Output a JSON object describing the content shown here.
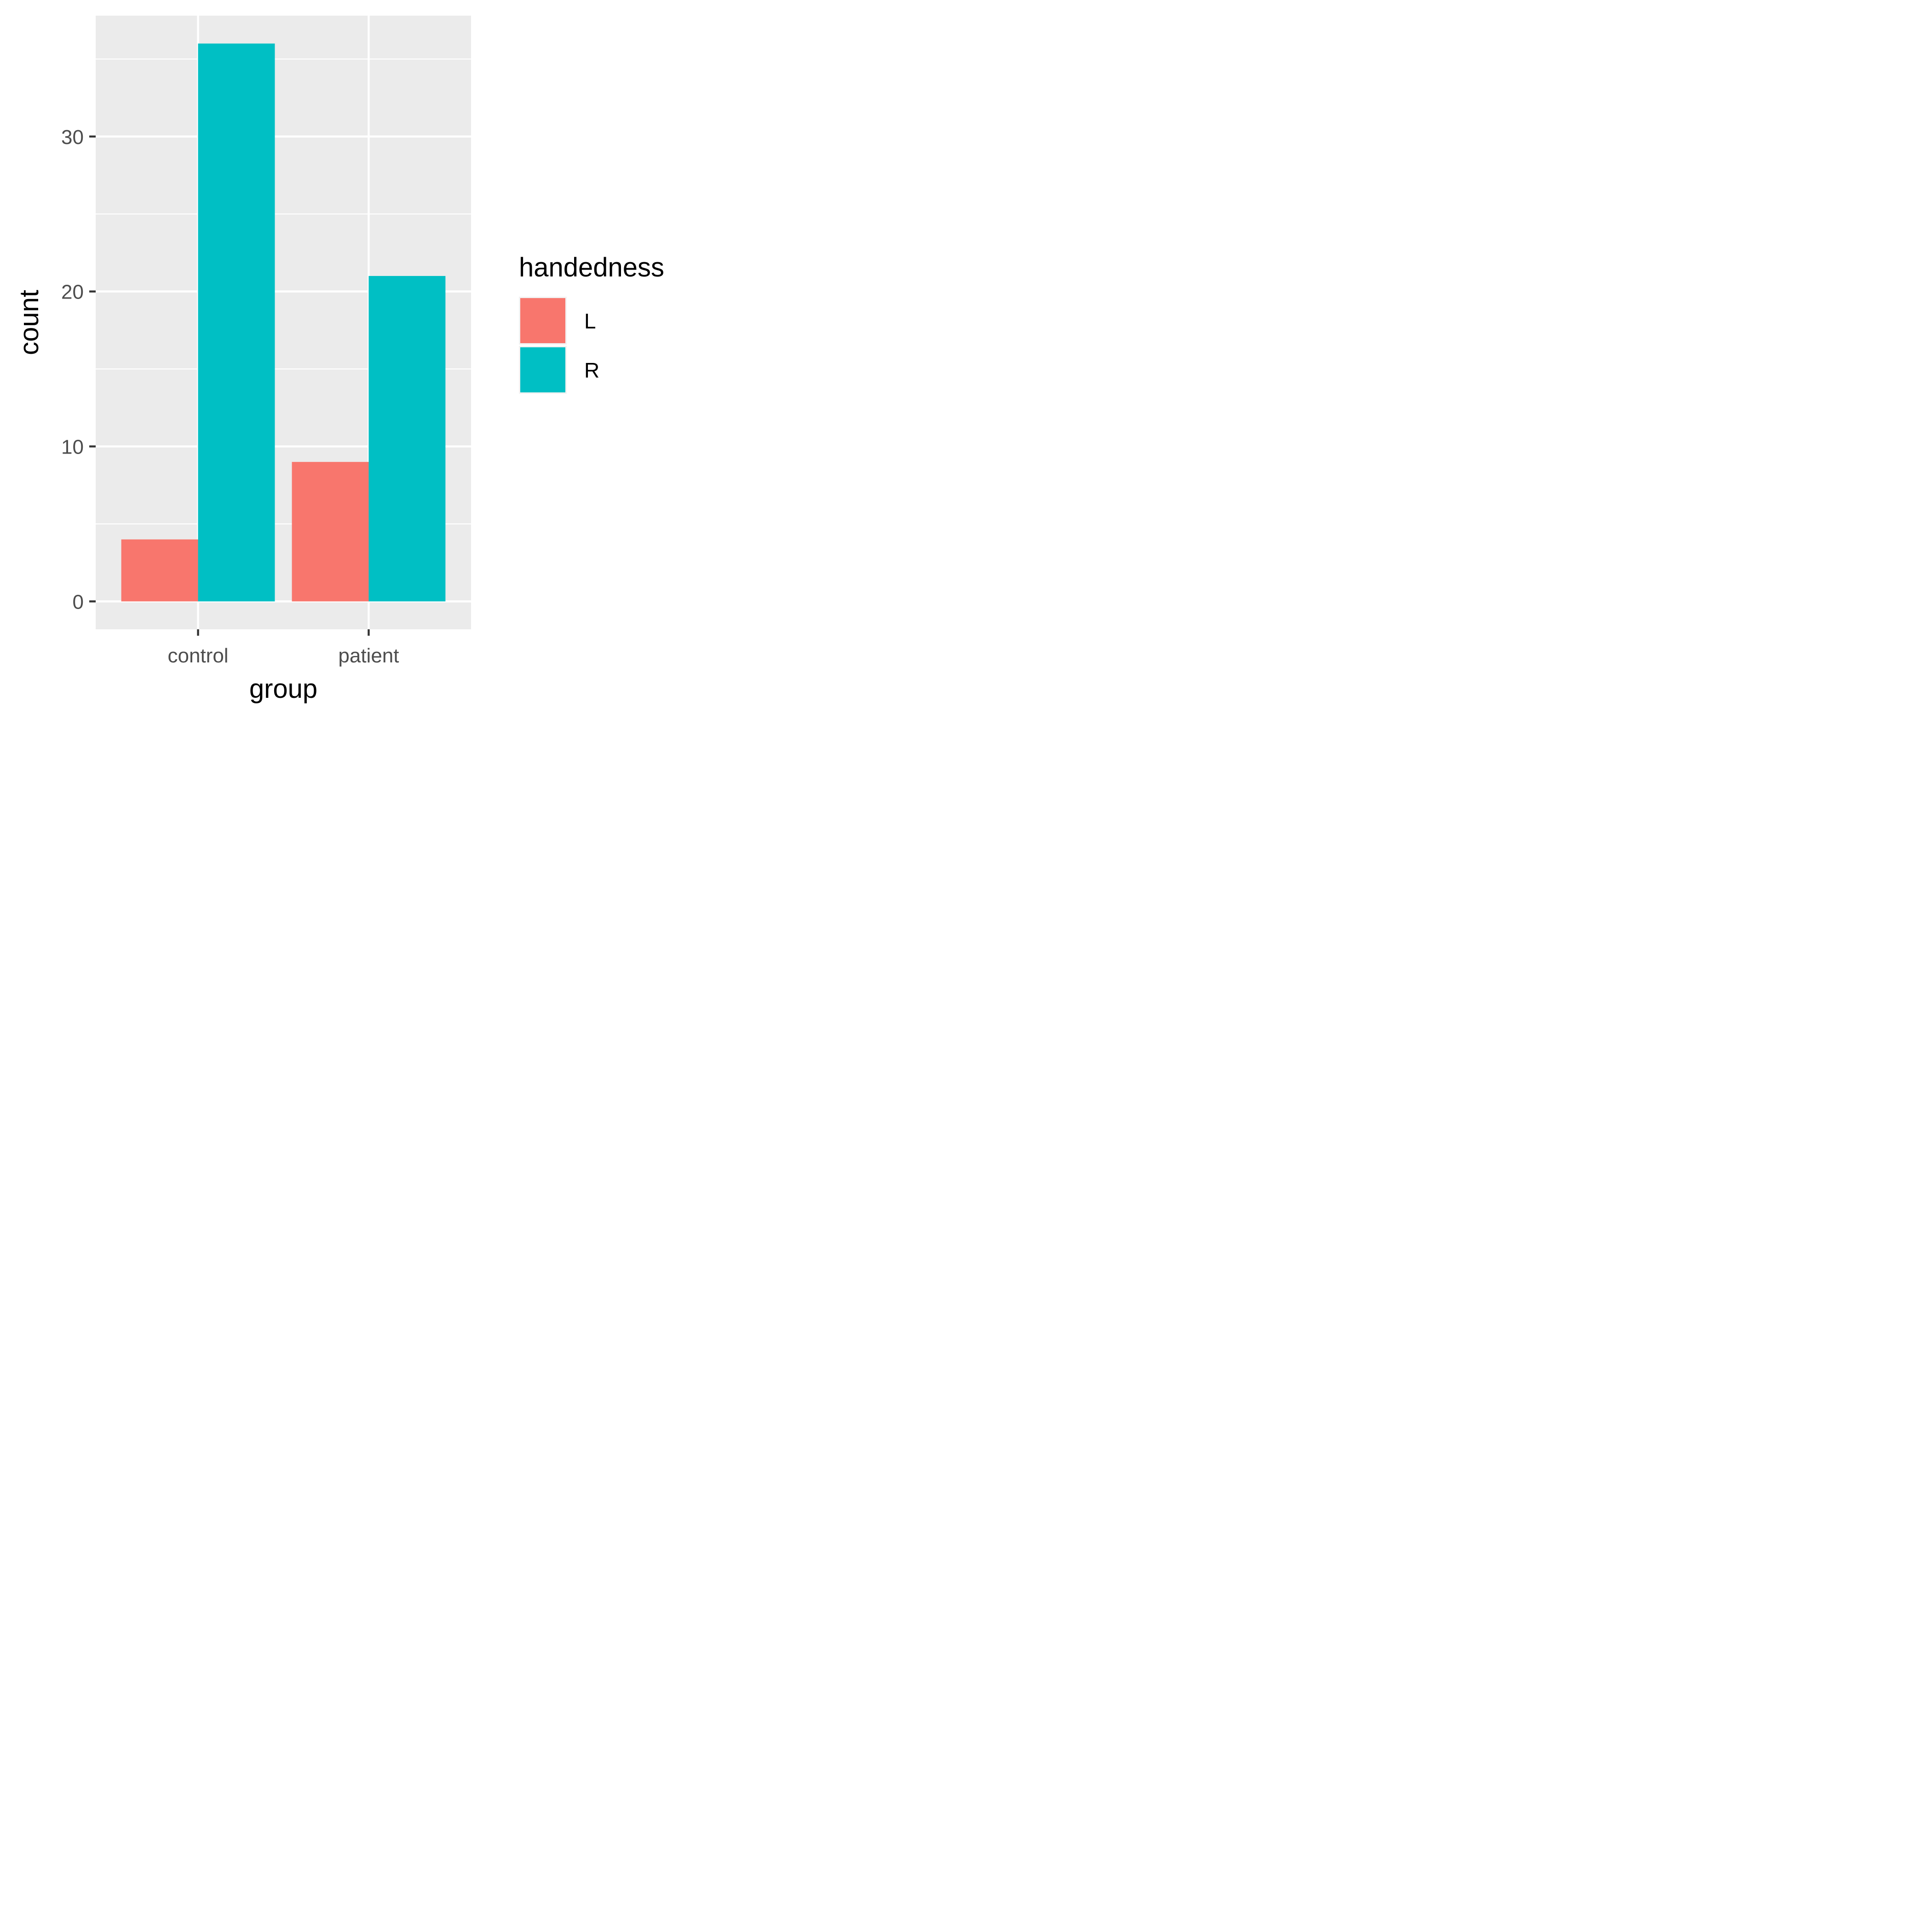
{
  "chart_data": {
    "type": "bar",
    "categories": [
      "control",
      "patient"
    ],
    "series": [
      {
        "name": "L",
        "values": [
          4,
          9
        ],
        "color": "#F8766D"
      },
      {
        "name": "R",
        "values": [
          36,
          21
        ],
        "color": "#00BFC4"
      }
    ],
    "xlabel": "group",
    "ylabel": "count",
    "yticks": [
      0,
      10,
      20,
      30
    ],
    "ylim": [
      -1.8,
      37.8
    ],
    "legend": {
      "title": "handedness",
      "position": "right"
    },
    "panel_background": "#EBEBEB",
    "grid": true,
    "grid_color": "#FFFFFF"
  }
}
